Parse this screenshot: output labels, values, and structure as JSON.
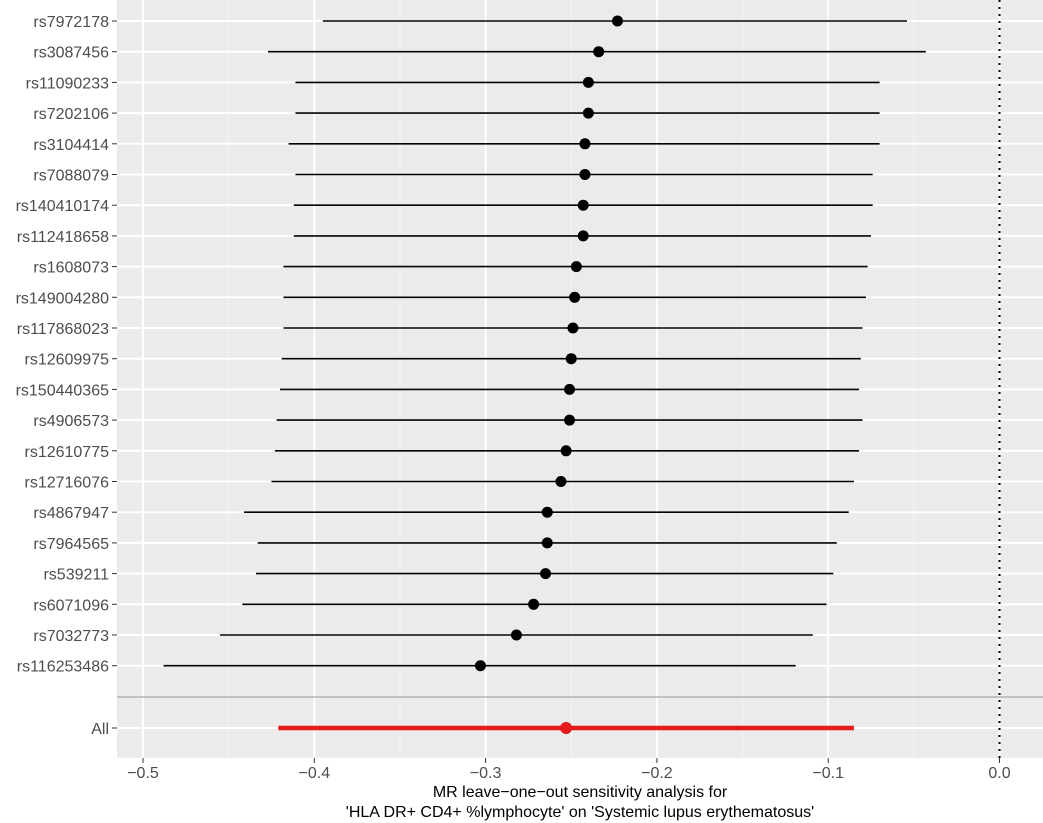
{
  "chart_data": {
    "type": "forest",
    "xlabel_lines": [
      "MR leave−one−out sensitivity analysis for",
      "'HLA DR+ CD4+ %lymphocyte' on 'Systemic lupus erythematosus'"
    ],
    "xlim": [
      -0.5,
      0.0
    ],
    "x_ticks": [
      -0.5,
      -0.4,
      -0.3,
      -0.2,
      -0.1,
      0.0
    ],
    "x_tick_labels": [
      "−0.5",
      "−0.4",
      "−0.3",
      "−0.2",
      "−0.1",
      "0.0"
    ],
    "reference_line": 0.0,
    "rows": [
      {
        "label": "rs7972178",
        "b": -0.223,
        "lo": -0.395,
        "hi": -0.054
      },
      {
        "label": "rs3087456",
        "b": -0.234,
        "lo": -0.427,
        "hi": -0.043
      },
      {
        "label": "rs11090233",
        "b": -0.24,
        "lo": -0.411,
        "hi": -0.07
      },
      {
        "label": "rs7202106",
        "b": -0.24,
        "lo": -0.411,
        "hi": -0.07
      },
      {
        "label": "rs3104414",
        "b": -0.242,
        "lo": -0.415,
        "hi": -0.07
      },
      {
        "label": "rs7088079",
        "b": -0.242,
        "lo": -0.411,
        "hi": -0.074
      },
      {
        "label": "rs140410174",
        "b": -0.243,
        "lo": -0.412,
        "hi": -0.074
      },
      {
        "label": "rs112418658",
        "b": -0.243,
        "lo": -0.412,
        "hi": -0.075
      },
      {
        "label": "rs1608073",
        "b": -0.247,
        "lo": -0.418,
        "hi": -0.077
      },
      {
        "label": "rs149004280",
        "b": -0.248,
        "lo": -0.418,
        "hi": -0.078
      },
      {
        "label": "rs117868023",
        "b": -0.249,
        "lo": -0.418,
        "hi": -0.08
      },
      {
        "label": "rs12609975",
        "b": -0.25,
        "lo": -0.419,
        "hi": -0.081
      },
      {
        "label": "rs150440365",
        "b": -0.251,
        "lo": -0.42,
        "hi": -0.082
      },
      {
        "label": "rs4906573",
        "b": -0.251,
        "lo": -0.422,
        "hi": -0.08
      },
      {
        "label": "rs12610775",
        "b": -0.253,
        "lo": -0.423,
        "hi": -0.082
      },
      {
        "label": "rs12716076",
        "b": -0.256,
        "lo": -0.425,
        "hi": -0.085
      },
      {
        "label": "rs4867947",
        "b": -0.264,
        "lo": -0.441,
        "hi": -0.088
      },
      {
        "label": "rs7964565",
        "b": -0.264,
        "lo": -0.433,
        "hi": -0.095
      },
      {
        "label": "rs539211",
        "b": -0.265,
        "lo": -0.434,
        "hi": -0.097
      },
      {
        "label": "rs6071096",
        "b": -0.272,
        "lo": -0.442,
        "hi": -0.101
      },
      {
        "label": "rs7032773",
        "b": -0.282,
        "lo": -0.455,
        "hi": -0.109
      },
      {
        "label": "rs116253486",
        "b": -0.303,
        "lo": -0.488,
        "hi": -0.119
      }
    ],
    "overall": {
      "label": "All",
      "b": -0.253,
      "lo": -0.421,
      "hi": -0.085
    },
    "colors": {
      "panel": "#ebebeb",
      "grid_major": "#ffffff",
      "grid_minor": "#f5f5f5",
      "point": "#000000",
      "overall": "#e41a1c",
      "separator": "#b3b3b3"
    }
  }
}
